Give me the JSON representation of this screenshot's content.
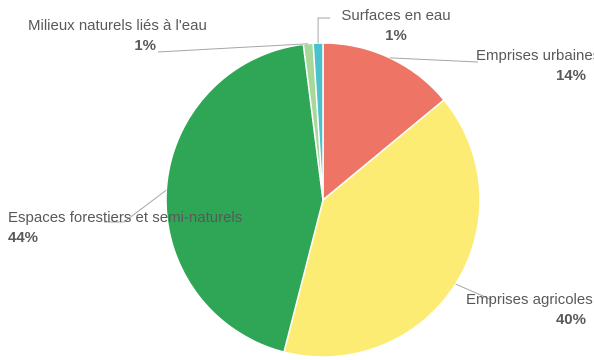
{
  "chart_data": {
    "type": "pie",
    "title": "",
    "slices": [
      {
        "label": "Emprises urbaines",
        "value": 14,
        "value_label": "14%",
        "color": "#ee7565"
      },
      {
        "label": "Emprises agricoles",
        "value": 40,
        "value_label": "40%",
        "color": "#fcec74"
      },
      {
        "label": "Espaces forestiers et semi-naturels",
        "value": 44,
        "value_label": "44%",
        "color": "#2ea655"
      },
      {
        "label": "Milieux naturels liés à l'eau",
        "value": 1,
        "value_label": "1%",
        "color": "#a8d79a"
      },
      {
        "label": "Surfaces en eau",
        "value": 1,
        "value_label": "1%",
        "color": "#4ac2cc"
      }
    ],
    "start_angle": "top, clockwise",
    "legend": "none (data labels with leader lines)"
  }
}
